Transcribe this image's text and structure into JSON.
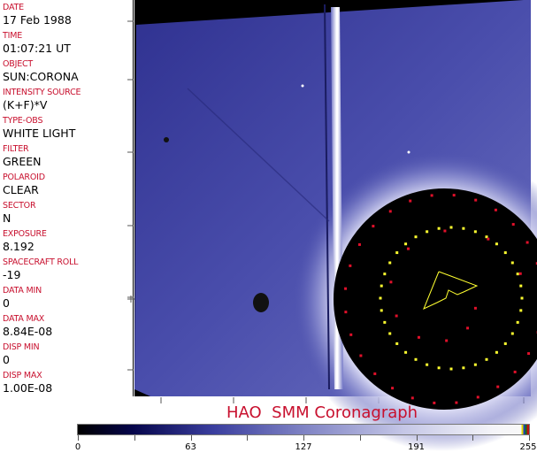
{
  "fields": [
    {
      "label": "DATE",
      "value": "17 Feb 1988"
    },
    {
      "label": "TIME",
      "value": "01:07:21 UT"
    },
    {
      "label": "OBJECT",
      "value": "SUN:CORONA"
    },
    {
      "label": "INTENSITY SOURCE",
      "value": "(K+F)*V"
    },
    {
      "label": "TYPE-OBS",
      "value": "WHITE LIGHT"
    },
    {
      "label": "FILTER",
      "value": "GREEN"
    },
    {
      "label": "POLAROID",
      "value": "CLEAR"
    },
    {
      "label": "SECTOR",
      "value": "N"
    },
    {
      "label": "EXPOSURE",
      "value": "8.192"
    },
    {
      "label": "SPACECRAFT ROLL",
      "value": "-19"
    },
    {
      "label": "DATA MIN",
      "value": "0"
    },
    {
      "label": "DATA MAX",
      "value": "8.84E-08"
    },
    {
      "label": "DISP MIN",
      "value": "0"
    },
    {
      "label": "DISP MAX",
      "value": "1.00E-08"
    }
  ],
  "title": "HAO  SMM Coronagraph",
  "colorbar": {
    "ticks": [
      "0",
      "63",
      "127",
      "191",
      "255"
    ],
    "min": 0,
    "max": 255
  },
  "colors": {
    "label": "#c8102e",
    "marker_red": "#e0102a",
    "marker_yellow": "#ffff30",
    "background_blue": "#3a3fa0"
  }
}
